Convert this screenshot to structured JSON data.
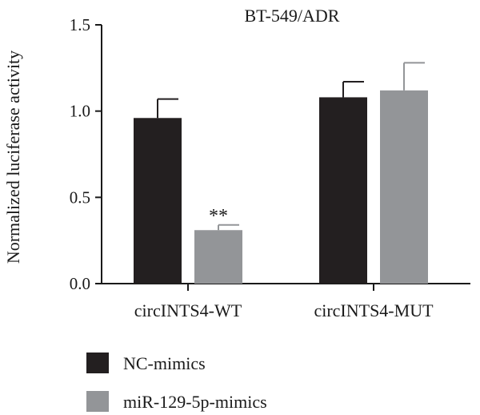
{
  "chart_data": {
    "type": "bar",
    "title": "BT-549/ADR",
    "ylabel": "Normalized luciferase activity",
    "xlabel": "",
    "ylim": [
      0,
      1.5
    ],
    "yticks": [
      "0.0",
      "0.5",
      "1.0",
      "1.5"
    ],
    "categories": [
      "circINTS4-WT",
      "circINTS4-MUT"
    ],
    "series": [
      {
        "name": "NC-mimics",
        "color": "#231f20",
        "values": [
          0.96,
          1.08
        ],
        "errors": [
          0.11,
          0.09
        ]
      },
      {
        "name": "miR-129-5p-mimics",
        "color": "#939598",
        "values": [
          0.31,
          1.12
        ],
        "errors": [
          0.03,
          0.16
        ]
      }
    ],
    "annotations": [
      {
        "text": "**",
        "category": 0,
        "series": 1
      }
    ],
    "legend_position": "bottom-left",
    "grid": false
  }
}
